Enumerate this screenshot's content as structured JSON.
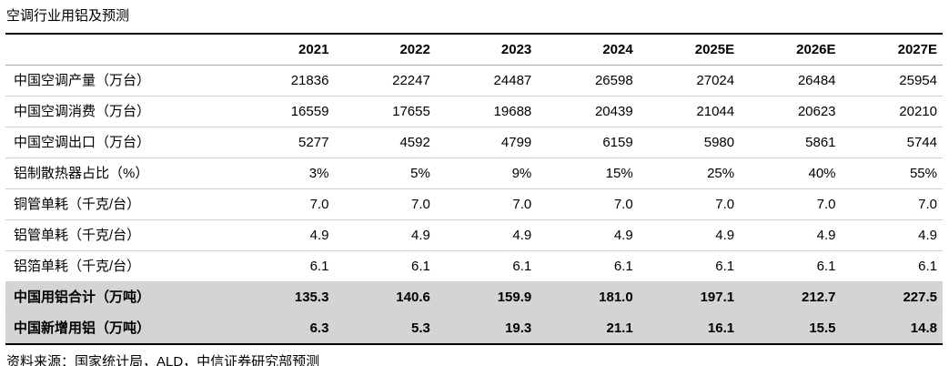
{
  "page": {
    "title": "空调行业用铝及预测",
    "source": "资料来源：国家统计局，ALD，中信证券研究部预测"
  },
  "colors": {
    "text": "#000000",
    "highlight_row_bg": "#d4d4d4",
    "strong_border": "#000000",
    "row_border": "#cfcfcf"
  },
  "chart_data": {
    "type": "table",
    "title": "空调行业用铝及预测",
    "source": "资料来源：国家统计局，ALD，中信证券研究部预测",
    "columns": [
      "2021",
      "2022",
      "2023",
      "2024",
      "2025E",
      "2026E",
      "2027E"
    ],
    "rows": [
      {
        "label": "中国空调产量（万台）",
        "values": [
          "21836",
          "22247",
          "24487",
          "26598",
          "27024",
          "26484",
          "25954"
        ],
        "highlight": false
      },
      {
        "label": "中国空调消费（万台）",
        "values": [
          "16559",
          "17655",
          "19688",
          "20439",
          "21044",
          "20623",
          "20210"
        ],
        "highlight": false
      },
      {
        "label": "中国空调出口（万台）",
        "values": [
          "5277",
          "4592",
          "4799",
          "6159",
          "5980",
          "5861",
          "5744"
        ],
        "highlight": false
      },
      {
        "label": "铝制散热器占比（%）",
        "values": [
          "3%",
          "5%",
          "9%",
          "15%",
          "25%",
          "40%",
          "55%"
        ],
        "highlight": false
      },
      {
        "label": "铜管单耗（千克/台）",
        "values": [
          "7.0",
          "7.0",
          "7.0",
          "7.0",
          "7.0",
          "7.0",
          "7.0"
        ],
        "highlight": false
      },
      {
        "label": "铝管单耗（千克/台）",
        "values": [
          "4.9",
          "4.9",
          "4.9",
          "4.9",
          "4.9",
          "4.9",
          "4.9"
        ],
        "highlight": false
      },
      {
        "label": "铝箔单耗（千克/台）",
        "values": [
          "6.1",
          "6.1",
          "6.1",
          "6.1",
          "6.1",
          "6.1",
          "6.1"
        ],
        "highlight": false
      },
      {
        "label": "中国用铝合计（万吨）",
        "values": [
          "135.3",
          "140.6",
          "159.9",
          "181.0",
          "197.1",
          "212.7",
          "227.5"
        ],
        "highlight": true
      },
      {
        "label": "中国新增用铝（万吨）",
        "values": [
          "6.3",
          "5.3",
          "19.3",
          "21.1",
          "16.1",
          "15.5",
          "14.8"
        ],
        "highlight": true
      }
    ]
  }
}
